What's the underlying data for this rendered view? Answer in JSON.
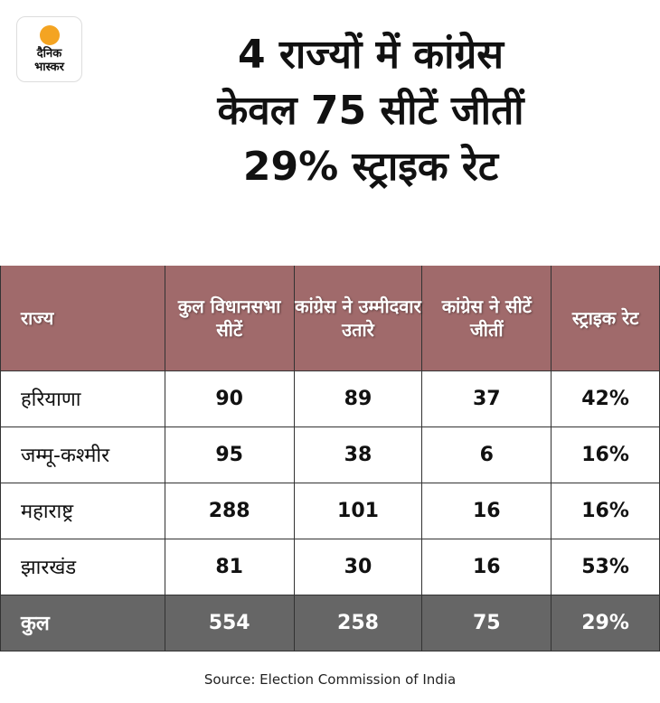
{
  "logo": {
    "line1": "दैनिक",
    "line2": "भास्कर"
  },
  "title": {
    "line1": "4 राज्यों में कांग्रेस",
    "line2": "केवल 75 सीटें जीतीं",
    "line3": "29% स्ट्राइक रेट"
  },
  "chart_data": {
    "type": "table",
    "columns": [
      "राज्य",
      "कुल विधानसभा सीटें",
      "कांग्रेस ने उम्मीदवार उतारे",
      "कांग्रेस ने सीटें जीतीं",
      "स्ट्राइक रेट"
    ],
    "rows": [
      [
        "हरियाणा",
        "90",
        "89",
        "37",
        "42%"
      ],
      [
        "जम्मू-कश्मीर",
        "95",
        "38",
        "6",
        "16%"
      ],
      [
        "महाराष्ट्र",
        "288",
        "101",
        "16",
        "16%"
      ],
      [
        "झारखंड",
        "81",
        "30",
        "16",
        "53%"
      ]
    ],
    "total": [
      "कुल",
      "554",
      "258",
      "75",
      "29%"
    ]
  },
  "colors": {
    "header": "#a06a6b",
    "total": "#666666",
    "logo_sun": "#f4a422"
  },
  "source": "Source: Election Commission of India"
}
